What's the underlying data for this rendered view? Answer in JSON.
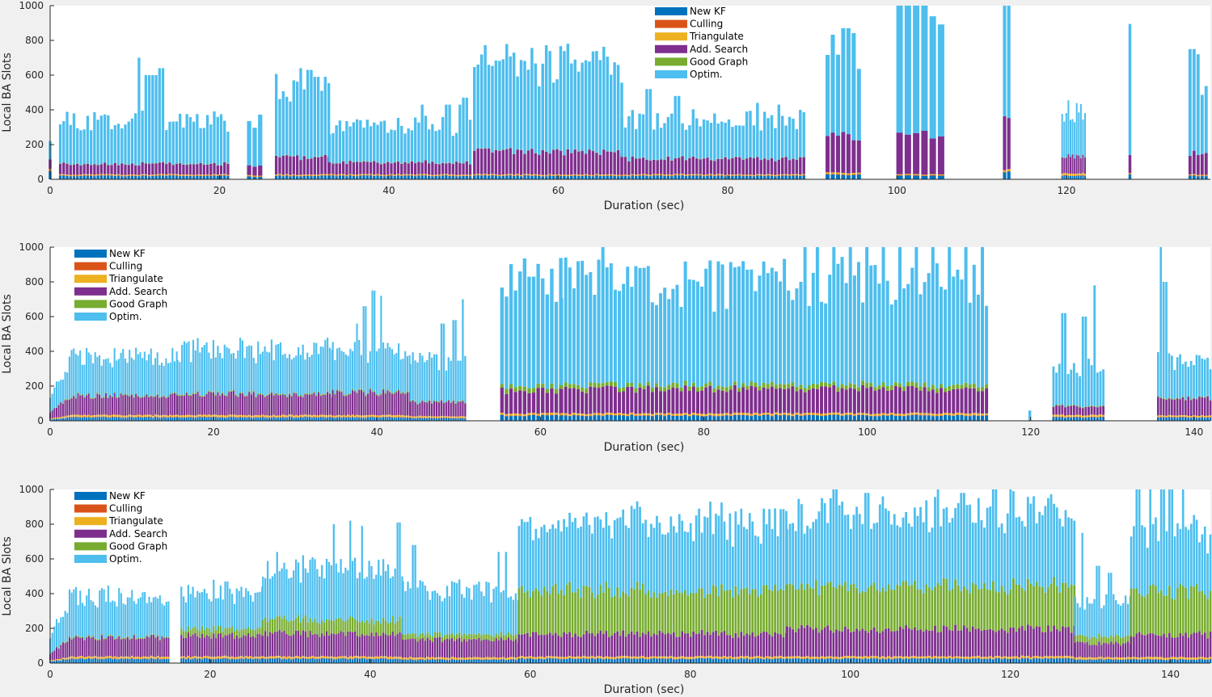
{
  "figure": {
    "background": "#f0f0f0",
    "axes_background": "#ffffff"
  },
  "legend_entries": [
    "New KF",
    "Culling",
    "Triangulate",
    "Add. Search",
    "Good Graph",
    "Optim."
  ],
  "colors": {
    "New KF": "#0072bd",
    "Culling": "#d95319",
    "Triangulate": "#edb120",
    "Add. Search": "#7e2f8e",
    "Good Graph": "#77ac30",
    "Optim.": "#4dbeee"
  },
  "chart_data": [
    {
      "type": "bar",
      "stacked": true,
      "xlabel": "Duration (sec)",
      "ylabel": "Local BA Slots",
      "xlim": [
        0,
        137
      ],
      "ylim": [
        0,
        1000
      ],
      "xticks": [
        0,
        20,
        40,
        60,
        80,
        100,
        120
      ],
      "yticks": [
        0,
        200,
        400,
        600,
        800,
        1000
      ],
      "legend_position": "top-center",
      "segments": [
        {
          "start": 0.0,
          "end": 0.3,
          "n": 1,
          "base": [
            40,
            5,
            8,
            50,
            0,
            100
          ]
        },
        {
          "start": 1.2,
          "end": 21.0,
          "n": 50,
          "base": [
            20,
            3,
            5,
            60,
            2,
            240
          ],
          "peaks": [
            [
              10.5,
              700
            ],
            [
              11.5,
              600
            ],
            [
              12.3,
              600
            ],
            [
              13.2,
              640
            ],
            [
              8,
              320
            ],
            [
              10,
              380
            ]
          ]
        },
        {
          "start": 23.5,
          "end": 24.8,
          "n": 3,
          "base": [
            15,
            3,
            5,
            60,
            0,
            235
          ]
        },
        {
          "start": 26.7,
          "end": 32.9,
          "n": 16,
          "base": [
            20,
            3,
            5,
            100,
            2,
            400
          ],
          "peaks": [
            [
              29.7,
              640
            ],
            [
              30.6,
              630
            ],
            [
              31.5,
              590
            ],
            [
              28.8,
              570
            ]
          ]
        },
        {
          "start": 33.0,
          "end": 49.6,
          "n": 42,
          "base": [
            20,
            3,
            5,
            70,
            2,
            210
          ],
          "peaks": [
            [
              44.0,
              430
            ],
            [
              47.0,
              430
            ],
            [
              48.5,
              430
            ],
            [
              49.0,
              470
            ]
          ]
        },
        {
          "start": 50.1,
          "end": 67.5,
          "n": 42,
          "base": [
            20,
            3,
            5,
            130,
            2,
            500
          ],
          "peaks": [
            [
              58.5,
              670
            ],
            [
              60.5,
              600
            ],
            [
              56.0,
              610
            ]
          ]
        },
        {
          "start": 67.5,
          "end": 89.0,
          "n": 52,
          "base": [
            20,
            3,
            5,
            90,
            2,
            220
          ],
          "peaks": [
            [
              70.6,
              520
            ],
            [
              74.0,
              480
            ],
            [
              83.5,
              440
            ],
            [
              86.0,
              430
            ],
            [
              88.6,
              400
            ]
          ]
        },
        {
          "start": 91.8,
          "end": 95.5,
          "n": 7,
          "base": [
            25,
            3,
            8,
            210,
            0,
            530
          ],
          "peaks": [
            [
              94.0,
              870
            ],
            [
              92.6,
              800
            ]
          ]
        },
        {
          "start": 100.3,
          "end": 105.2,
          "n": 6,
          "base": [
            20,
            3,
            5,
            230,
            0,
            760
          ],
          "peaks": [
            [
              101.3,
              1000
            ],
            [
              102.5,
              1000
            ],
            [
              103.5,
              1000
            ]
          ]
        },
        {
          "start": 112.7,
          "end": 113.2,
          "n": 2,
          "base": [
            40,
            3,
            10,
            320,
            0,
            650
          ],
          "peaks": [
            [
              113.0,
              1000
            ]
          ]
        },
        {
          "start": 119.5,
          "end": 122.2,
          "n": 12,
          "base": [
            20,
            3,
            10,
            100,
            2,
            260
          ]
        },
        {
          "start": 127.5,
          "end": 127.8,
          "n": 1,
          "base": [
            30,
            3,
            5,
            120,
            0,
            640
          ]
        },
        {
          "start": 134.6,
          "end": 136.5,
          "n": 5,
          "base": [
            20,
            3,
            5,
            120,
            0,
            420
          ],
          "peaks": [
            [
              134.8,
              750
            ],
            [
              135.6,
              720
            ]
          ]
        }
      ]
    },
    {
      "type": "bar",
      "stacked": true,
      "xlabel": "Duration (sec)",
      "ylabel": "Local BA Slots",
      "xlim": [
        0,
        142
      ],
      "ylim": [
        0,
        1000
      ],
      "xticks": [
        0,
        20,
        40,
        60,
        80,
        100,
        120,
        140
      ],
      "yticks": [
        0,
        200,
        400,
        600,
        800,
        1000
      ],
      "legend_position": "top-left",
      "segments": [
        {
          "start": 0.0,
          "end": 15.5,
          "n": 60,
          "base": [
            20,
            3,
            10,
            110,
            5,
            220
          ],
          "ramp": true
        },
        {
          "start": 15.6,
          "end": 34.5,
          "n": 70,
          "base": [
            20,
            3,
            10,
            120,
            6,
            250
          ],
          "peaks": [
            [
              30.5,
              380
            ],
            [
              32.0,
              380
            ],
            [
              33.0,
              360
            ]
          ]
        },
        {
          "start": 34.6,
          "end": 44.0,
          "n": 36,
          "base": [
            20,
            3,
            10,
            130,
            6,
            230
          ],
          "peaks": [
            [
              39.5,
              750
            ],
            [
              40.5,
              720
            ],
            [
              38.5,
              660
            ],
            [
              37.5,
              560
            ]
          ]
        },
        {
          "start": 44.1,
          "end": 50.8,
          "n": 24,
          "base": [
            15,
            3,
            8,
            80,
            4,
            230
          ],
          "peaks": [
            [
              50.5,
              700
            ],
            [
              48.0,
              560
            ],
            [
              49.5,
              580
            ]
          ]
        },
        {
          "start": 55.3,
          "end": 62.5,
          "n": 14,
          "base": [
            30,
            3,
            10,
            130,
            25,
            620
          ],
          "peaks": [
            [
              57.8,
              860
            ],
            [
              59.0,
              830
            ]
          ]
        },
        {
          "start": 62.6,
          "end": 114.6,
          "n": 104,
          "base": [
            30,
            3,
            10,
            140,
            25,
            590
          ],
          "peaks": [
            [
              67.8,
              1000
            ],
            [
              72.0,
              880
            ],
            [
              92.5,
              1000
            ],
            [
              94.0,
              1000
            ],
            [
              96.0,
              1000
            ],
            [
              98.0,
              1000
            ],
            [
              102.0,
              1000
            ],
            [
              104.0,
              1000
            ],
            [
              106.0,
              1000
            ],
            [
              108.0,
              1000
            ],
            [
              110.0,
              1000
            ],
            [
              112.0,
              1000
            ],
            [
              114.0,
              1000
            ],
            [
              100.0,
              1000
            ],
            [
              88.0,
              760
            ],
            [
              85.0,
              640
            ]
          ]
        },
        {
          "start": 119.9,
          "end": 120.0,
          "n": 1,
          "base": [
            0,
            0,
            0,
            0,
            0,
            70
          ]
        },
        {
          "start": 122.8,
          "end": 128.9,
          "n": 18,
          "base": [
            20,
            3,
            10,
            50,
            4,
            230
          ],
          "peaks": [
            [
              127.8,
              780
            ],
            [
              124.0,
              620
            ],
            [
              126.5,
              600
            ]
          ]
        },
        {
          "start": 135.6,
          "end": 142.0,
          "n": 20,
          "base": [
            20,
            3,
            8,
            100,
            4,
            220
          ],
          "peaks": [
            [
              136.0,
              1000
            ],
            [
              136.5,
              800
            ]
          ]
        }
      ]
    },
    {
      "type": "bar",
      "stacked": true,
      "xlabel": "Duration (sec)",
      "ylabel": "Local BA Slots",
      "xlim": [
        0,
        145
      ],
      "ylim": [
        0,
        1000
      ],
      "xticks": [
        0,
        20,
        40,
        60,
        80,
        100,
        120,
        140
      ],
      "yticks": [
        0,
        200,
        400,
        600,
        800,
        1000
      ],
      "legend_position": "top-left",
      "segments": [
        {
          "start": 0.0,
          "end": 14.8,
          "n": 56,
          "base": [
            25,
            3,
            10,
            110,
            6,
            230
          ],
          "ramp": true
        },
        {
          "start": 16.4,
          "end": 26.5,
          "n": 36,
          "base": [
            25,
            3,
            10,
            120,
            40,
            200
          ],
          "peaks": [
            [
              20.5,
              480
            ],
            [
              22.0,
              470
            ]
          ]
        },
        {
          "start": 26.6,
          "end": 44.0,
          "n": 60,
          "base": [
            25,
            3,
            10,
            130,
            80,
            300
          ],
          "peaks": [
            [
              35.5,
              800
            ],
            [
              37.5,
              820
            ],
            [
              39.0,
              790
            ],
            [
              43.5,
              810
            ]
          ]
        },
        {
          "start": 44.1,
          "end": 58.5,
          "n": 48,
          "base": [
            20,
            3,
            10,
            100,
            30,
            250
          ],
          "peaks": [
            [
              56.0,
              640
            ],
            [
              57.0,
              640
            ],
            [
              45.5,
              680
            ]
          ]
        },
        {
          "start": 58.6,
          "end": 92.0,
          "n": 96,
          "base": [
            25,
            3,
            10,
            130,
            250,
            380
          ],
          "peaks": [
            [
              65.0,
              800
            ],
            [
              71.5,
              840
            ],
            [
              79.0,
              820
            ],
            [
              82.5,
              930
            ],
            [
              84.0,
              920
            ]
          ]
        },
        {
          "start": 92.1,
          "end": 128.0,
          "n": 100,
          "base": [
            25,
            3,
            10,
            160,
            250,
            420
          ],
          "peaks": [
            [
              98.0,
              1000
            ],
            [
              99.0,
              930
            ],
            [
              102.0,
              980
            ],
            [
              104.0,
              960
            ],
            [
              111.0,
              1000
            ],
            [
              118.0,
              1000
            ],
            [
              120.0,
              1000
            ],
            [
              116.0,
              950
            ],
            [
              114.0,
              980
            ]
          ]
        },
        {
          "start": 128.1,
          "end": 135.0,
          "n": 24,
          "base": [
            20,
            3,
            10,
            80,
            40,
            200
          ],
          "peaks": [
            [
              129.0,
              750
            ],
            [
              131.0,
              560
            ],
            [
              132.5,
              520
            ]
          ]
        },
        {
          "start": 135.1,
          "end": 145.0,
          "n": 30,
          "base": [
            20,
            3,
            10,
            130,
            250,
            330
          ],
          "peaks": [
            [
              136.0,
              1000
            ],
            [
              137.5,
              1000
            ],
            [
              139.0,
              1000
            ],
            [
              140.0,
              1000
            ],
            [
              141.5,
              1000
            ],
            [
              138.0,
              800
            ]
          ]
        }
      ]
    }
  ]
}
